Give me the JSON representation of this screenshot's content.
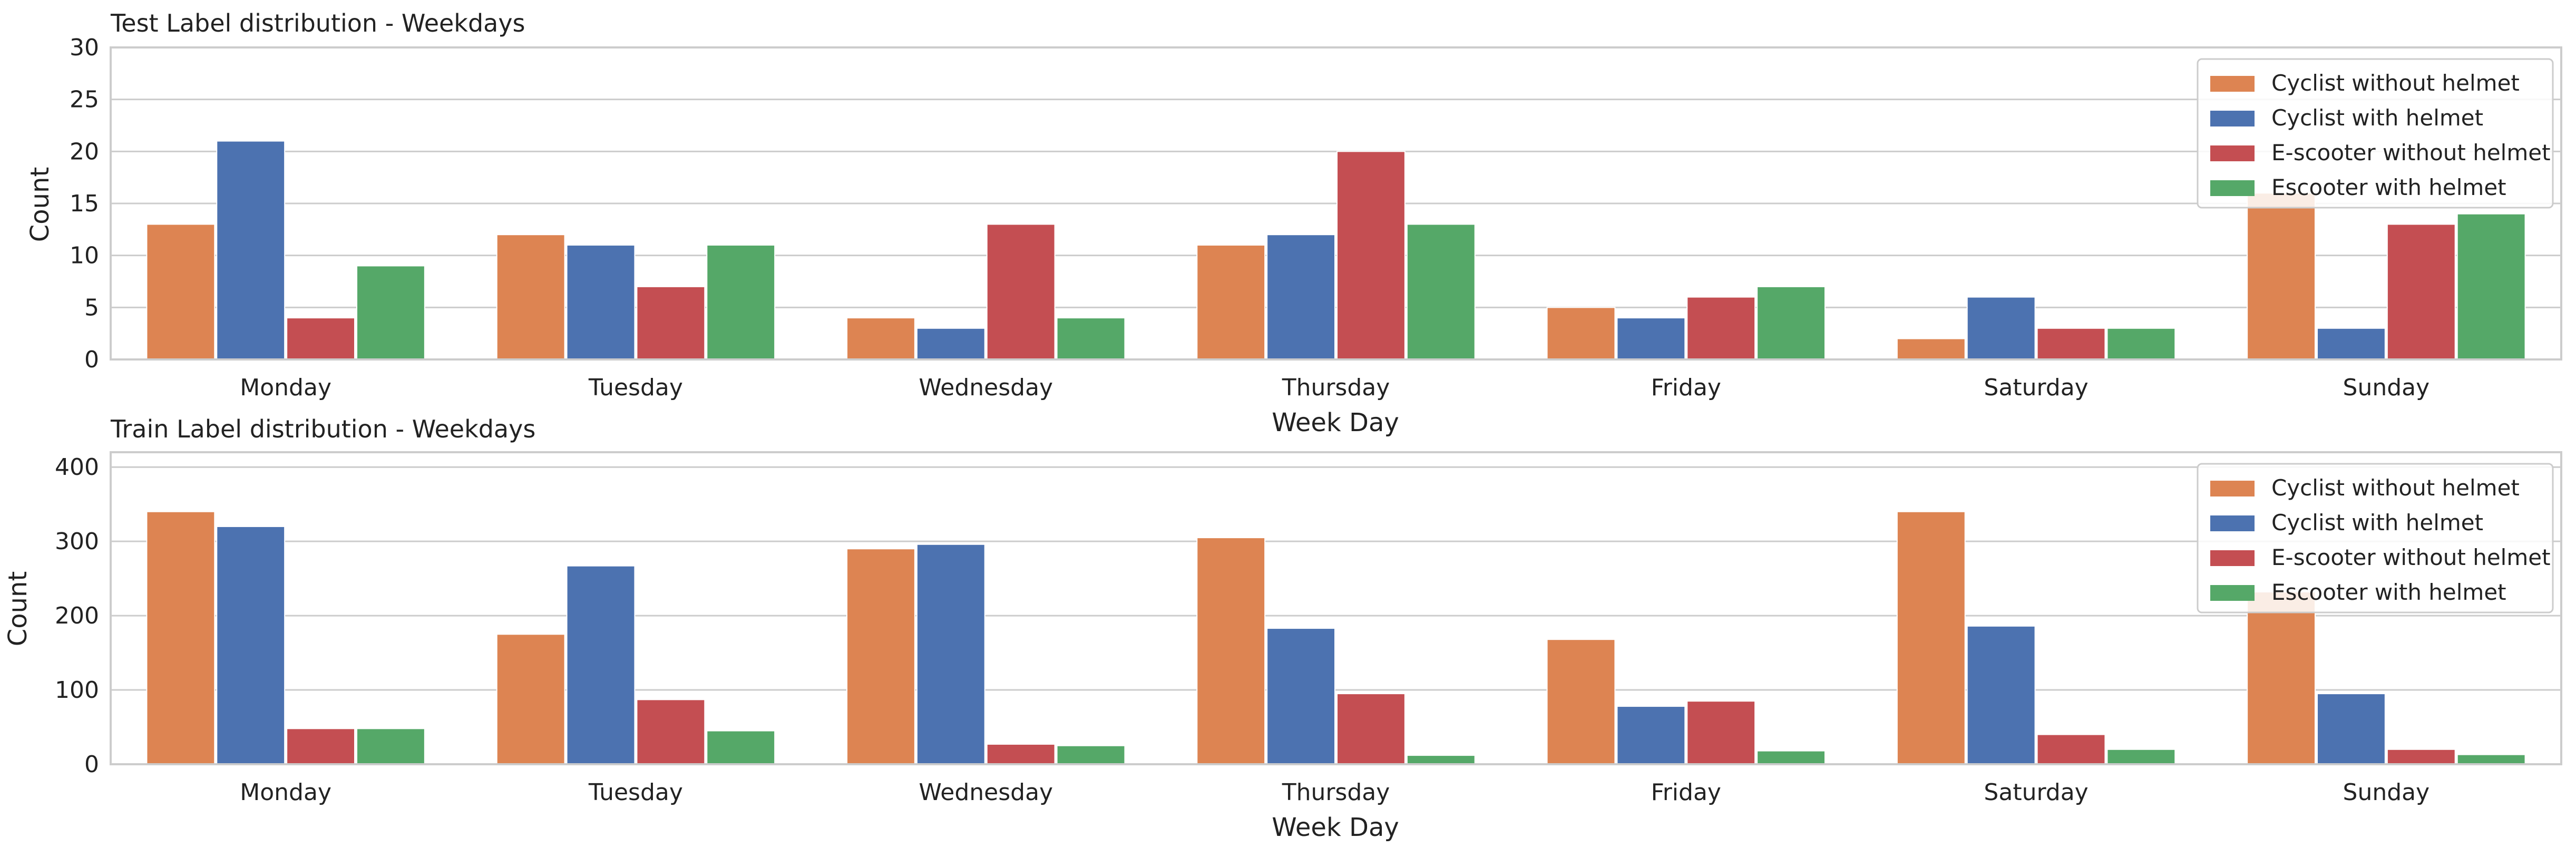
{
  "chart_data": [
    {
      "type": "bar",
      "title": "Test Label distribution - Weekdays",
      "xlabel": "Week Day",
      "ylabel": "Count",
      "ylim": [
        0,
        30
      ],
      "yticks": [
        0,
        5,
        10,
        15,
        20,
        25,
        30
      ],
      "grid": "y",
      "legend_position": "top-right",
      "categories": [
        "Monday",
        "Tuesday",
        "Wednesday",
        "Thursday",
        "Friday",
        "Saturday",
        "Sunday"
      ],
      "series": [
        {
          "name": "Cyclist without helmet",
          "color": "#dd8452",
          "values": [
            13,
            12,
            4,
            11,
            5,
            2,
            16
          ]
        },
        {
          "name": "Cyclist with helmet",
          "color": "#4c72b0",
          "values": [
            21,
            11,
            3,
            12,
            4,
            6,
            3
          ]
        },
        {
          "name": "E-scooter without helmet",
          "color": "#c44e52",
          "values": [
            4,
            7,
            13,
            20,
            6,
            3,
            13
          ]
        },
        {
          "name": "Escooter with helmet",
          "color": "#55a868",
          "values": [
            9,
            11,
            4,
            13,
            7,
            3,
            14
          ]
        }
      ]
    },
    {
      "type": "bar",
      "title": "Train Label distribution - Weekdays",
      "xlabel": "Week Day",
      "ylabel": "Count",
      "ylim": [
        0,
        420
      ],
      "yticks": [
        0,
        100,
        200,
        300,
        400
      ],
      "grid": "y",
      "legend_position": "top-right",
      "categories": [
        "Monday",
        "Tuesday",
        "Wednesday",
        "Thursday",
        "Friday",
        "Saturday",
        "Sunday"
      ],
      "series": [
        {
          "name": "Cyclist without helmet",
          "color": "#dd8452",
          "values": [
            340,
            175,
            290,
            305,
            168,
            340,
            232
          ]
        },
        {
          "name": "Cyclist with helmet",
          "color": "#4c72b0",
          "values": [
            320,
            267,
            296,
            183,
            78,
            186,
            95
          ]
        },
        {
          "name": "E-scooter without helmet",
          "color": "#c44e52",
          "values": [
            48,
            87,
            27,
            95,
            85,
            40,
            20
          ]
        },
        {
          "name": "Escooter with helmet",
          "color": "#55a868",
          "values": [
            48,
            45,
            25,
            12,
            18,
            20,
            13
          ]
        }
      ]
    }
  ]
}
